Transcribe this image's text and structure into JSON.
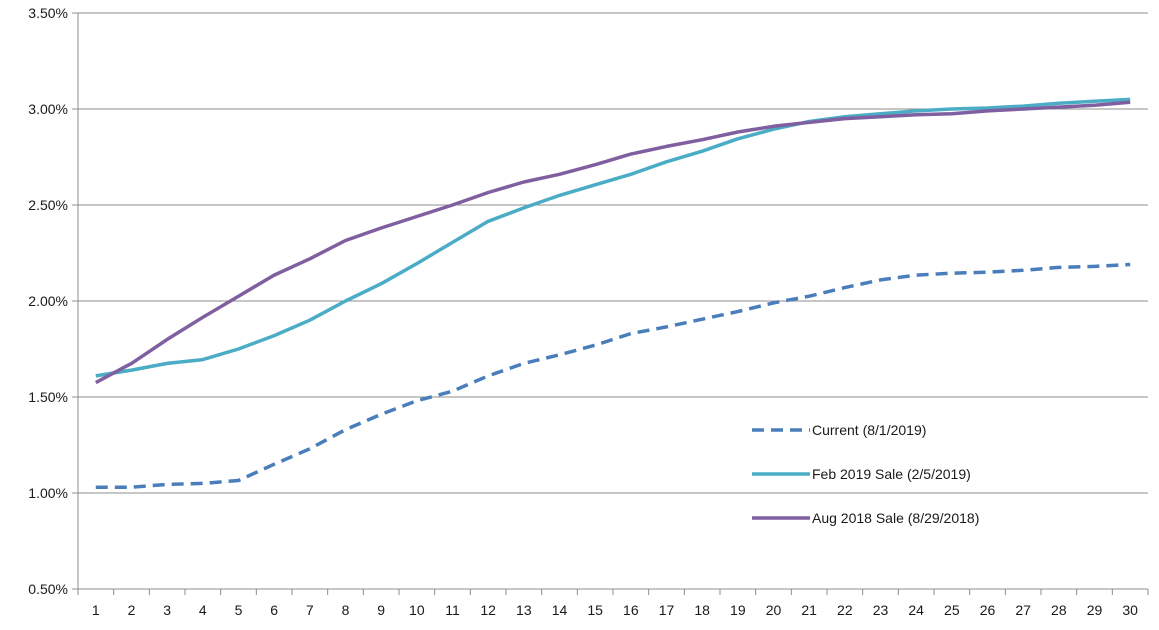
{
  "chart_data": {
    "type": "line",
    "title": "",
    "xlabel": "",
    "ylabel": "",
    "x": [
      1,
      2,
      3,
      4,
      5,
      6,
      7,
      8,
      9,
      10,
      11,
      12,
      13,
      14,
      15,
      16,
      17,
      18,
      19,
      20,
      21,
      22,
      23,
      24,
      25,
      26,
      27,
      28,
      29,
      30
    ],
    "ylim": [
      0.5,
      3.5
    ],
    "yticks": [
      0.5,
      1.0,
      1.5,
      2.0,
      2.5,
      3.0,
      3.5
    ],
    "ytick_labels": [
      "0.50%",
      "1.00%",
      "1.50%",
      "2.00%",
      "2.50%",
      "3.00%",
      "3.50%"
    ],
    "grid": "horizontal",
    "legend_position": "lower-right inside plot",
    "series": [
      {
        "name": "Current (8/1/2019)",
        "color": "#4a7ebb",
        "style": "dashed",
        "values": [
          1.03,
          1.03,
          1.045,
          1.05,
          1.065,
          1.15,
          1.23,
          1.33,
          1.41,
          1.48,
          1.53,
          1.61,
          1.675,
          1.72,
          1.77,
          1.83,
          1.865,
          1.905,
          1.945,
          1.99,
          2.025,
          2.07,
          2.11,
          2.135,
          2.145,
          2.15,
          2.16,
          2.175,
          2.18,
          2.19
        ]
      },
      {
        "name": "Feb 2019 Sale (2/5/2019)",
        "color": "#4bacc6",
        "style": "solid",
        "values": [
          1.61,
          1.64,
          1.675,
          1.695,
          1.75,
          1.82,
          1.9,
          2.0,
          2.09,
          2.195,
          2.305,
          2.415,
          2.485,
          2.55,
          2.605,
          2.66,
          2.725,
          2.78,
          2.845,
          2.895,
          2.935,
          2.96,
          2.975,
          2.99,
          3.0,
          3.005,
          3.015,
          3.03,
          3.04,
          3.05
        ]
      },
      {
        "name": "Aug 2018 Sale (8/29/2018)",
        "color": "#7f5fa0",
        "style": "solid",
        "values": [
          1.575,
          1.675,
          1.8,
          1.915,
          2.025,
          2.135,
          2.22,
          2.315,
          2.38,
          2.44,
          2.5,
          2.565,
          2.62,
          2.66,
          2.71,
          2.765,
          2.805,
          2.84,
          2.88,
          2.91,
          2.93,
          2.95,
          2.96,
          2.97,
          2.975,
          2.99,
          3.0,
          3.01,
          3.02,
          3.035
        ]
      }
    ]
  }
}
